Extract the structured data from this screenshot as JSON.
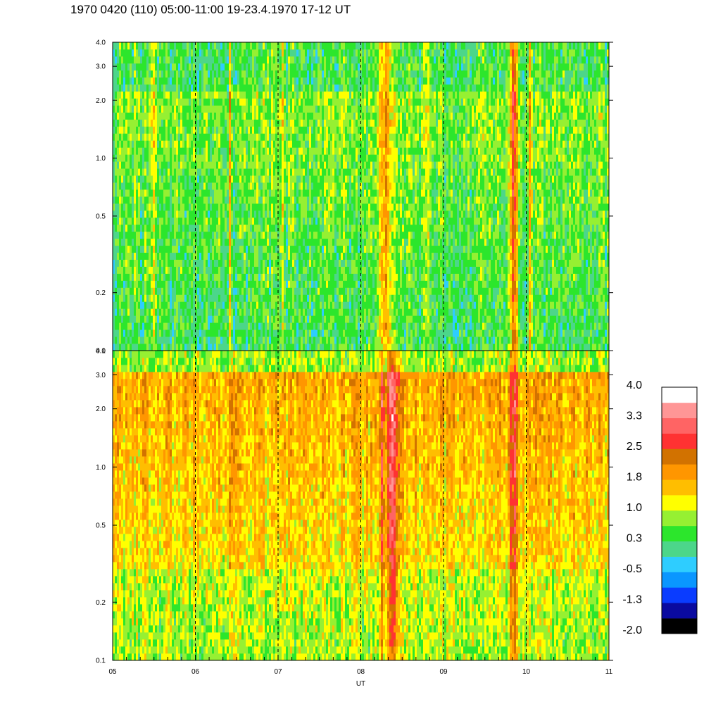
{
  "title": "1970 0420 (110) 05:00-11:00 19-23.4.1970  17-12 UT",
  "chart_data": [
    {
      "type": "heatmap",
      "panel": "top",
      "x_range": [
        5,
        11
      ],
      "y_scale": "log",
      "y_range": [
        0.1,
        4.0
      ],
      "y_ticks": [
        0.1,
        0.2,
        0.5,
        1.0,
        2.0,
        3.0,
        4.0
      ],
      "y_tick_labels": [
        "0.1",
        "0.2",
        "0.5",
        "1.0",
        "2.0",
        "3.0",
        "4.0"
      ],
      "base_level": 0.3,
      "vertical_dashed_lines_at": [
        6,
        7,
        8,
        9,
        10
      ],
      "bursts": [
        {
          "x": 5.5,
          "width": 0.05,
          "level": 1.0
        },
        {
          "x": 6.42,
          "width": 0.03,
          "level": 1.8
        },
        {
          "x": 7.05,
          "width": 0.04,
          "level": 1.0
        },
        {
          "x": 8.3,
          "width": 0.12,
          "level": 1.8
        },
        {
          "x": 8.8,
          "width": 0.04,
          "level": 1.0
        },
        {
          "x": 9.85,
          "width": 0.08,
          "level": 2.5
        },
        {
          "x": 10.05,
          "width": 0.03,
          "level": 1.8
        }
      ]
    },
    {
      "type": "heatmap",
      "panel": "bottom",
      "x_range": [
        5,
        11
      ],
      "y_scale": "log",
      "y_range": [
        0.1,
        4.0
      ],
      "y_ticks": [
        0.1,
        0.2,
        0.5,
        1.0,
        2.0,
        3.0,
        4.0
      ],
      "y_tick_labels": [
        "0.1",
        "0.2",
        "0.5",
        "1.0",
        "2.0",
        "3.0",
        "4.0"
      ],
      "base_level": 1.4,
      "vertical_dashed_lines_at": [
        6,
        7,
        8,
        9,
        10
      ],
      "x_ticks": [
        5,
        6,
        7,
        8,
        9,
        10,
        11
      ],
      "x_tick_labels": [
        "05",
        "06",
        "07",
        "08",
        "09",
        "10",
        "11"
      ],
      "xlabel": "UT",
      "bursts": [
        {
          "x": 8.25,
          "width": 0.04,
          "level": 2.5
        },
        {
          "x": 8.38,
          "width": 0.12,
          "level": 3.0
        },
        {
          "x": 9.85,
          "width": 0.08,
          "level": 2.8
        },
        {
          "x": 10.05,
          "width": 0.03,
          "level": 2.0
        },
        {
          "x": 6.42,
          "width": 0.03,
          "level": 2.0
        },
        {
          "x": 7.05,
          "width": 0.04,
          "level": 1.8
        }
      ]
    }
  ],
  "colorbar": {
    "labels": [
      "4.0",
      "3.3",
      "2.5",
      "1.8",
      "1.0",
      "0.3",
      "-0.5",
      "-1.3",
      "-2.0"
    ],
    "range": [
      -2.0,
      4.0
    ],
    "colors": [
      "#000000",
      "#0a0aa0",
      "#0a3cff",
      "#0a96ff",
      "#2ecdff",
      "#4cd68a",
      "#2ce62c",
      "#96f032",
      "#ffff00",
      "#ffbe00",
      "#ff9600",
      "#d27200",
      "#ff3232",
      "#ff6464",
      "#ff9696",
      "#ffffff"
    ]
  }
}
